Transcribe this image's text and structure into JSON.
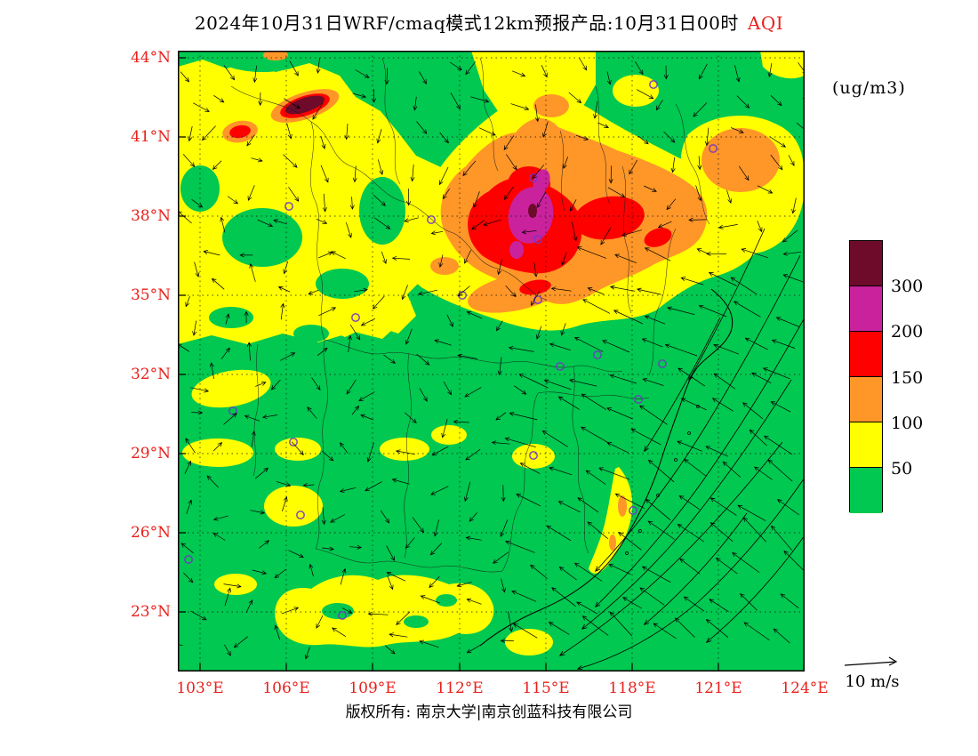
{
  "title": {
    "main": "2024年10月31日WRF/cmaq模式12km预报产品:10月31日00时",
    "highlight": "AQI"
  },
  "units_label": "(ug/m3)",
  "axes": {
    "lat_labels": [
      "44°N",
      "41°N",
      "38°N",
      "35°N",
      "32°N",
      "29°N",
      "26°N",
      "23°N"
    ],
    "lon_labels": [
      "103°E",
      "106°E",
      "109°E",
      "112°E",
      "115°E",
      "118°E",
      "121°E",
      "124°E"
    ]
  },
  "legend": {
    "tick_labels": [
      "300",
      "200",
      "150",
      "100",
      "50"
    ],
    "colors": [
      {
        "name": "maroon",
        "hex": "#6E0B2B",
        "range": ">300"
      },
      {
        "name": "magenta",
        "hex": "#C9229C",
        "range": "200-300"
      },
      {
        "name": "red",
        "hex": "#FF0000",
        "range": "150-200"
      },
      {
        "name": "orange",
        "hex": "#FF9628",
        "range": "100-150"
      },
      {
        "name": "yellow",
        "hex": "#FFFF00",
        "range": "50-100"
      },
      {
        "name": "green",
        "hex": "#00C850",
        "range": "<50"
      }
    ]
  },
  "wind_scale": {
    "label": "10 m/s"
  },
  "footer": "版权所有: 南京大学|南京创蓝科技有限公司",
  "palette": {
    "green": "#00C850",
    "yellow": "#FFFF00",
    "orange": "#FF9628",
    "red": "#FF0000",
    "magenta": "#C9229C",
    "maroon": "#6E0B2B",
    "city_marker_purple": "#7436C6",
    "axis_label_red": "#E8211C"
  },
  "chart_data": {
    "type": "heatmap",
    "subtype": "filled contour map of AQI with wind vector overlay",
    "title": "2024年10月31日WRF/cmaq模式12km预报产品:10月31日00时 AQI",
    "variable": "AQI",
    "units": "ug/m3",
    "x": {
      "label": "longitude",
      "unit": "°E",
      "ticks": [
        103,
        106,
        109,
        112,
        115,
        118,
        121,
        124
      ]
    },
    "y": {
      "label": "latitude",
      "unit": "°N",
      "ticks": [
        44,
        41,
        38,
        35,
        32,
        29,
        26,
        23
      ]
    },
    "contour_levels": [
      50,
      100,
      150,
      200,
      300
    ],
    "level_colors": {
      "<50": "#00C850",
      "50-100": "#FFFF00",
      "100-150": "#FF9628",
      "150-200": "#FF0000",
      "200-300": "#C9229C",
      ">300": "#6E0B2B"
    },
    "features": [
      {
        "region": "small hotspot near 42.5N 106.5E",
        "peak": ">300",
        "note": "dark maroon core ringed by red and orange inside northwest yellow band"
      },
      {
        "region": "North China Plain 36-40N 111-117E",
        "peak": "200-300",
        "note": "large orange area with red cores; magenta (200-300) core near 38.5N 114E"
      },
      {
        "region": "secondary red core near 37.5N 115.5E",
        "peak": "150-200"
      },
      {
        "region": "orange patch near 40N 121.5E",
        "peak": "100-150"
      },
      {
        "region": "broad northwest / northern band 35-44N",
        "peak": "50-100",
        "note": "widespread yellow with green gaps"
      },
      {
        "region": "orange tongue extending south to ~35N 113-115E",
        "peak": "100-150"
      },
      {
        "region": "scattered patches 26-30N over south-central China",
        "peak": "50-100"
      },
      {
        "region": "southern band near 23-25N 106-112E and narrow SE coastal strip",
        "peak": "50-100"
      },
      {
        "region": "southeast China, middle-lower Yangtze and coast",
        "peak": "<50",
        "note": "green; strong northeasterly winds curving southwest along coast"
      }
    ],
    "wind": {
      "style": "vector arrows",
      "reference_speed": "10 m/s",
      "pattern": "strong NE monsoon flow over SE China and coastal waters; weaker variable winds inland"
    },
    "city_markers": "small open purple circles at major cities"
  }
}
